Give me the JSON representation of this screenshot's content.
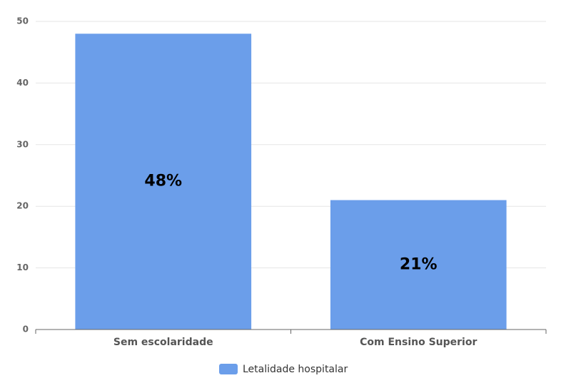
{
  "chart_data": {
    "type": "bar",
    "categories": [
      "Sem escolaridade",
      "Com Ensino Superior"
    ],
    "series": [
      {
        "name": "Letalidade hospitalar",
        "color": "#6b9eea",
        "values": [
          48,
          21
        ],
        "value_labels": [
          "48%",
          "21%"
        ]
      }
    ],
    "ylim": [
      0,
      50
    ],
    "yticks": [
      0,
      10,
      20,
      30,
      40,
      50
    ],
    "grid": true,
    "legend": "bottom"
  }
}
